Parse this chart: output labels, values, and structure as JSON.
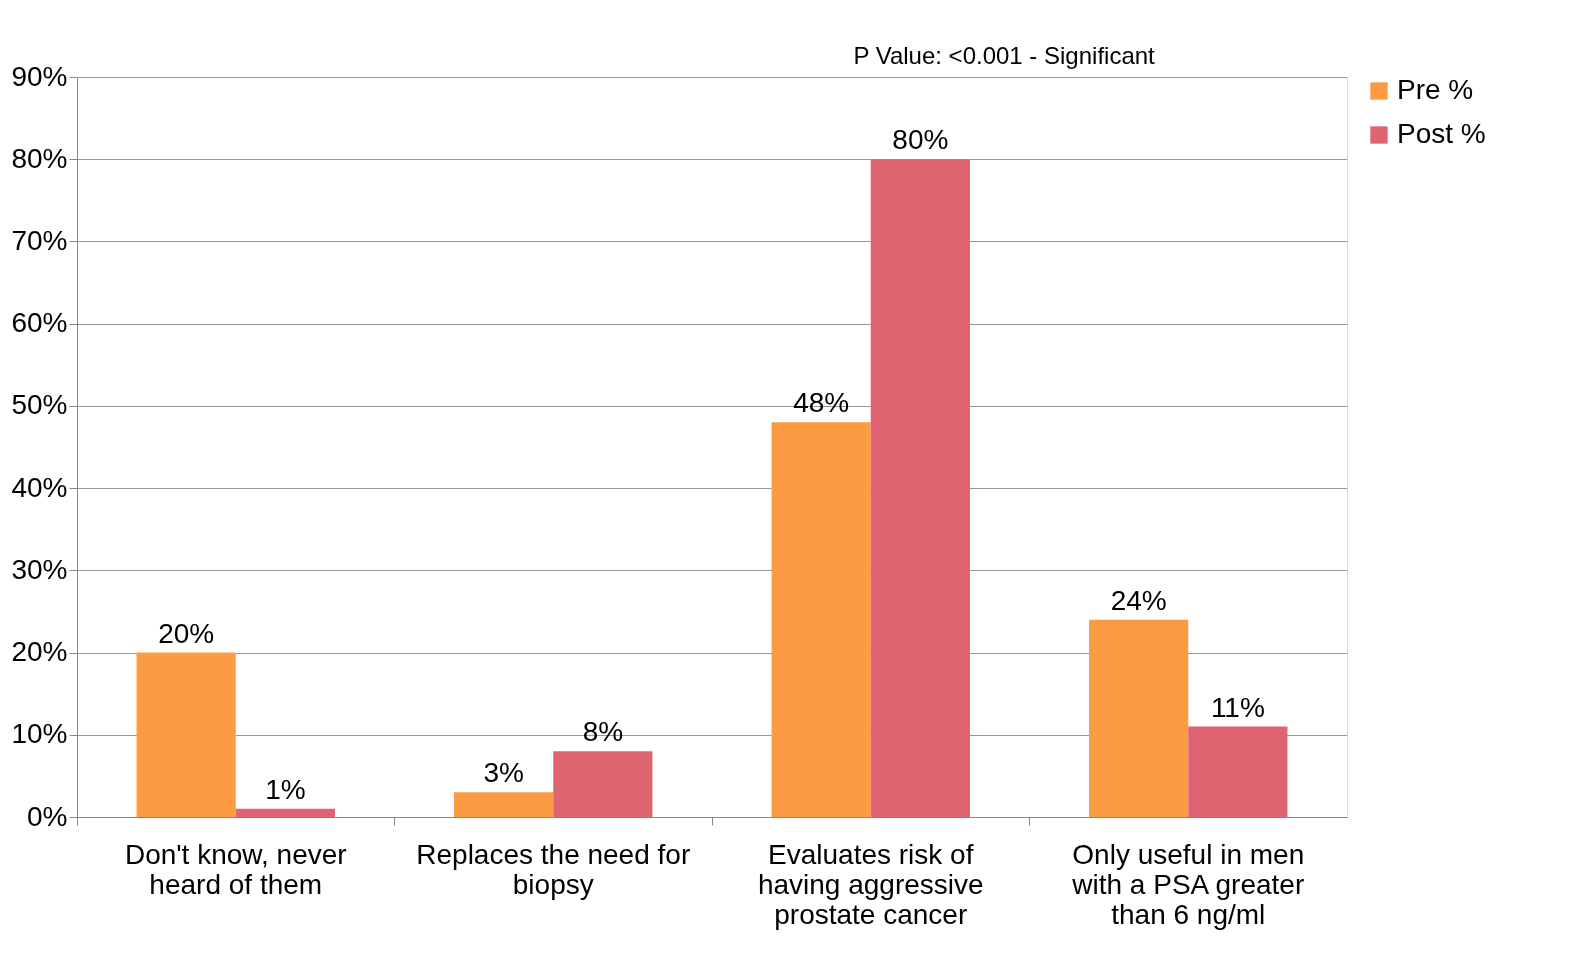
{
  "chart_data": {
    "type": "bar",
    "categories": [
      "Don't know, never heard of them",
      "Replaces the need for biopsy",
      "Evaluates risk of having aggressive prostate cancer",
      "Only useful in men with a PSA greater than 6 ng/ml"
    ],
    "series": [
      {
        "name": "Pre %",
        "color": "#fb9c42",
        "values": [
          20,
          3,
          48,
          24
        ],
        "value_labels": [
          "20%",
          "3%",
          "48%",
          "24%"
        ]
      },
      {
        "name": "Post %",
        "color": "#dd6470",
        "values": [
          1,
          8,
          80,
          11
        ],
        "value_labels": [
          "1%",
          "8%",
          "80%",
          "11%"
        ]
      }
    ],
    "ylim": [
      0,
      90
    ],
    "yticks": [
      {
        "value": 0,
        "label": "0%"
      },
      {
        "value": 10,
        "label": "10%"
      },
      {
        "value": 20,
        "label": "20%"
      },
      {
        "value": 30,
        "label": "30%"
      },
      {
        "value": 40,
        "label": "40%"
      },
      {
        "value": 50,
        "label": "50%"
      },
      {
        "value": 60,
        "label": "60%"
      },
      {
        "value": 70,
        "label": "70%"
      },
      {
        "value": 80,
        "label": "80%"
      },
      {
        "value": 90,
        "label": "90%"
      }
    ],
    "grid": "y",
    "legend": "right",
    "annotations": [
      "P Value: <0.001 - Significant"
    ]
  }
}
